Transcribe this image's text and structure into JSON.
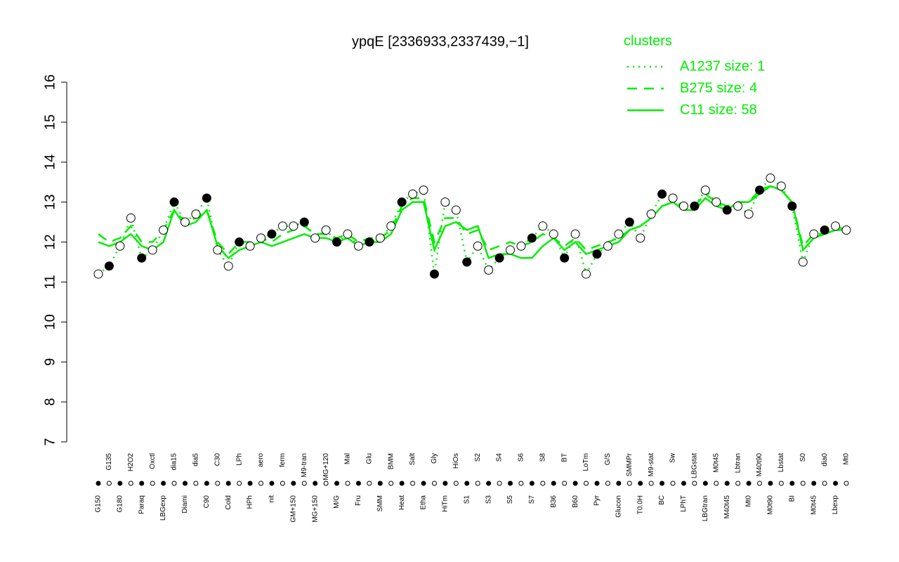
{
  "chart_data": {
    "type": "line",
    "title": "ypqE [2336933,2337439,−1]",
    "legend_title": "clusters",
    "categories": [
      "G150",
      "G135",
      "G180",
      "H2O2",
      "Paraq",
      "Oxctl",
      "LBGexp",
      "dia15",
      "Diami",
      "dia5",
      "C90",
      "C30",
      "Cold",
      "LPh",
      "HPh",
      "aero",
      "nit",
      "ferm",
      "GM+150",
      "M9-tran",
      "MG+150",
      "MG+120",
      "M/G",
      "Mal",
      "Fru",
      "Glu",
      "SMM",
      "BMM",
      "Heat",
      "Salt",
      "Etha",
      "Gly",
      "HiTm",
      "HiOs",
      "S1",
      "S2",
      "S3",
      "S4",
      "S5",
      "S6",
      "S7",
      "S8",
      "B36",
      "BT",
      "B60",
      "LoTm",
      "Pyr",
      "G/S",
      "Glucon",
      "SMMPr",
      "T0.0H",
      "M9-stat",
      "BC",
      "Sw",
      "LPhT",
      "LBGstat",
      "LBGtran",
      "M0t45",
      "M40t45",
      "Lbtran",
      "Mt0",
      "M40t90",
      "M0t90",
      "Lbstat",
      "BI",
      "S0",
      "M0t45",
      "dia0",
      "Lbexp",
      "Mt0"
    ],
    "series": [
      {
        "name": "A1237 size: 1",
        "color": "#00ee00",
        "dash": "dotted",
        "values": [
          11.2,
          11.4,
          11.9,
          12.6,
          11.6,
          11.8,
          12.3,
          13.0,
          12.5,
          12.7,
          13.1,
          11.8,
          11.4,
          12.0,
          11.9,
          12.1,
          12.2,
          12.4,
          12.4,
          12.5,
          12.1,
          12.3,
          12.0,
          12.2,
          11.9,
          12.0,
          12.1,
          12.4,
          13.0,
          13.2,
          13.3,
          11.2,
          13.0,
          12.8,
          11.5,
          11.9,
          11.3,
          11.6,
          11.8,
          11.9,
          12.1,
          12.4,
          12.2,
          11.6,
          12.2,
          11.2,
          11.7,
          11.9,
          12.2,
          12.5,
          12.1,
          12.7,
          13.2,
          13.1,
          12.9,
          12.9,
          13.3,
          13.0,
          12.8,
          12.9,
          12.7,
          13.3,
          13.6,
          13.4,
          12.9,
          11.5,
          12.2,
          12.3,
          12.4,
          12.3
        ]
      },
      {
        "name": "B275 size: 4",
        "color": "#00ee00",
        "dash": "dashed",
        "values": [
          12.2,
          12.0,
          12.1,
          12.4,
          12.0,
          12.0,
          12.3,
          12.8,
          12.5,
          12.6,
          12.8,
          12.0,
          11.7,
          12.0,
          12.0,
          12.1,
          12.0,
          12.2,
          12.3,
          12.4,
          12.2,
          12.2,
          12.1,
          12.2,
          12.0,
          12.1,
          12.1,
          12.3,
          12.9,
          13.1,
          13.1,
          12.0,
          12.6,
          12.6,
          12.2,
          12.3,
          11.8,
          11.9,
          12.0,
          11.9,
          12.0,
          12.2,
          12.1,
          11.9,
          12.1,
          11.8,
          11.9,
          12.0,
          12.1,
          12.3,
          12.4,
          12.6,
          12.9,
          13.0,
          12.9,
          12.9,
          13.2,
          13.0,
          12.9,
          13.0,
          13.0,
          13.3,
          13.4,
          13.3,
          13.0,
          11.9,
          12.2,
          12.2,
          12.4,
          12.3
        ]
      },
      {
        "name": "C11 size: 58",
        "color": "#00ee00",
        "dash": "solid",
        "values": [
          12.0,
          11.9,
          12.0,
          12.2,
          11.9,
          11.8,
          12.0,
          12.8,
          12.4,
          12.5,
          12.8,
          11.9,
          11.6,
          11.8,
          11.9,
          12.0,
          11.9,
          12.0,
          12.1,
          12.2,
          12.1,
          12.1,
          12.0,
          12.1,
          11.9,
          12.0,
          12.0,
          12.2,
          12.8,
          13.0,
          13.0,
          11.8,
          12.4,
          12.5,
          12.3,
          12.4,
          11.6,
          11.7,
          11.7,
          11.6,
          11.6,
          11.9,
          12.1,
          11.8,
          12.0,
          11.7,
          11.8,
          11.9,
          12.0,
          12.3,
          12.4,
          12.6,
          12.9,
          13.0,
          12.8,
          12.8,
          13.1,
          12.9,
          12.8,
          13.0,
          13.0,
          13.2,
          13.4,
          13.3,
          13.0,
          11.8,
          12.1,
          12.2,
          12.3,
          12.3
        ]
      }
    ],
    "ylim": [
      7,
      16
    ],
    "yticks": [
      7,
      8,
      9,
      10,
      11,
      12,
      13,
      14,
      15,
      16
    ]
  }
}
